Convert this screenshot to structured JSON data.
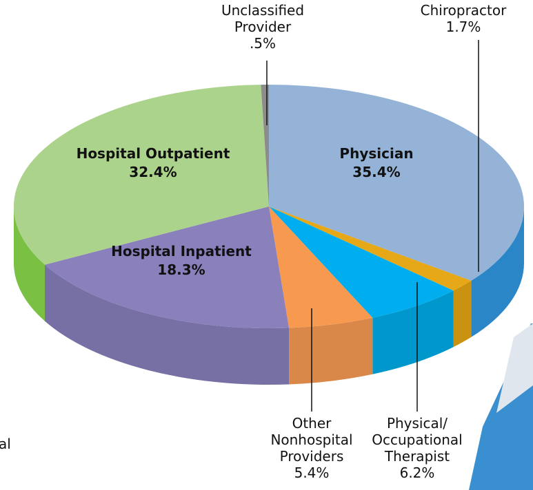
{
  "chart_data": {
    "type": "pie",
    "categories": [
      "Physician",
      "Chiropractor",
      "Physical/ Occupational Therapist",
      "Other Nonhospital Providers",
      "Hospital Inpatient",
      "Hospital Outpatient",
      "Unclassified Provider"
    ],
    "values": [
      35.4,
      1.7,
      6.2,
      5.4,
      18.3,
      32.4,
      0.5
    ],
    "value_labels": [
      "35.4%",
      "1.7%",
      "6.2%",
      "5.4%",
      "18.3%",
      "32.4%",
      ".5%"
    ],
    "colors": [
      "#95b3d7",
      "#e6a817",
      "#00aeef",
      "#f79a4f",
      "#8a80bb",
      "#acd38b",
      "#8c8c8c"
    ],
    "side_colors": [
      "#2b86c8",
      "#c99210",
      "#0098cc",
      "#d9884a",
      "#7670a5",
      "#7ac143",
      "#6e6e6e"
    ],
    "annotations": [
      "al"
    ]
  }
}
